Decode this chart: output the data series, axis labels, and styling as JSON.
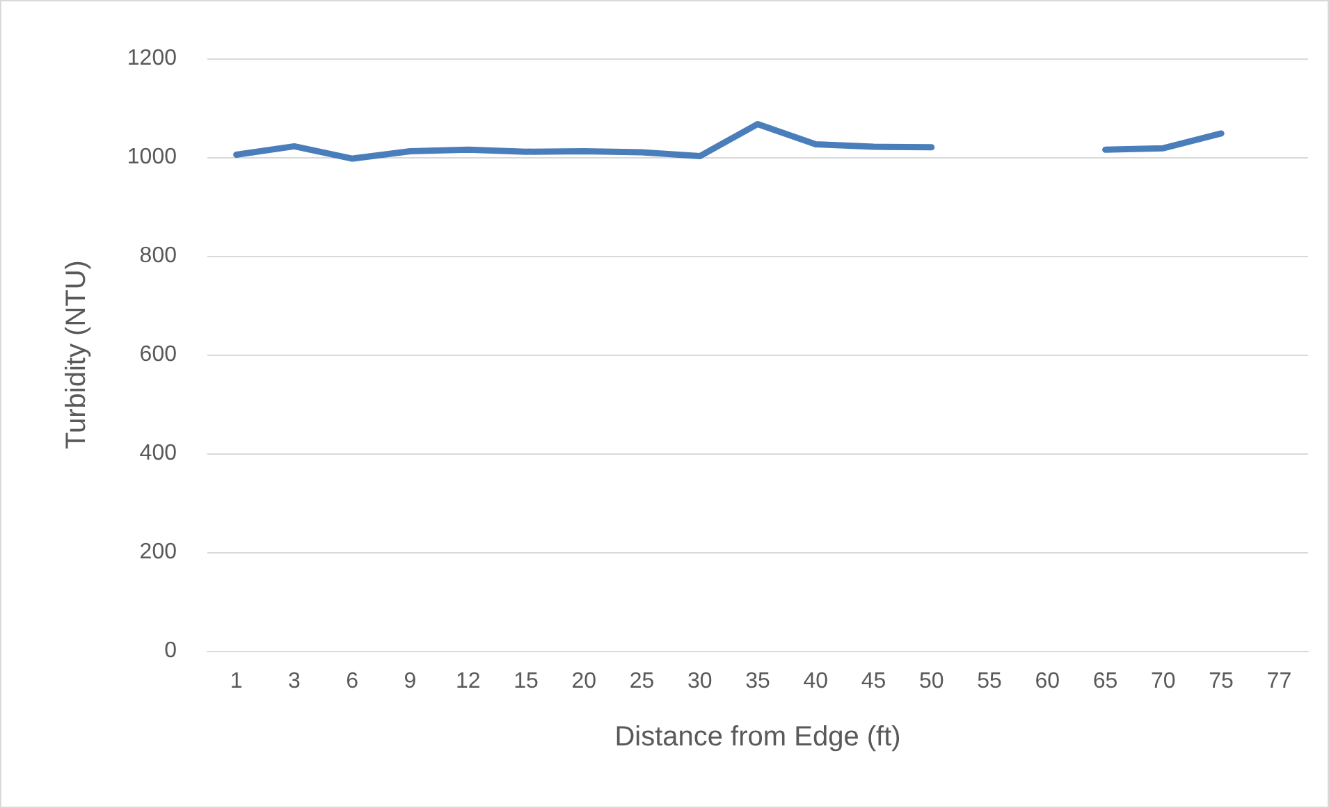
{
  "chart_data": {
    "type": "line",
    "xlabel": "Distance from Edge (ft)",
    "ylabel": "Turbidity (NTU)",
    "categories": [
      "1",
      "3",
      "6",
      "9",
      "12",
      "15",
      "20",
      "25",
      "30",
      "35",
      "40",
      "45",
      "50",
      "55",
      "60",
      "65",
      "70",
      "75",
      "77"
    ],
    "series": [
      {
        "color": "#4a7ebb",
        "values": [
          1005,
          1022,
          997,
          1012,
          1015,
          1011,
          1012,
          1010,
          1002,
          1067,
          1026,
          1021,
          1020,
          null,
          null,
          1015,
          1018,
          1048,
          null
        ]
      }
    ],
    "ylim": [
      0,
      1200
    ],
    "yticks": [
      0,
      200,
      400,
      600,
      800,
      1000,
      1200
    ],
    "grid": "y",
    "marker": "none",
    "line_style": "solid"
  }
}
